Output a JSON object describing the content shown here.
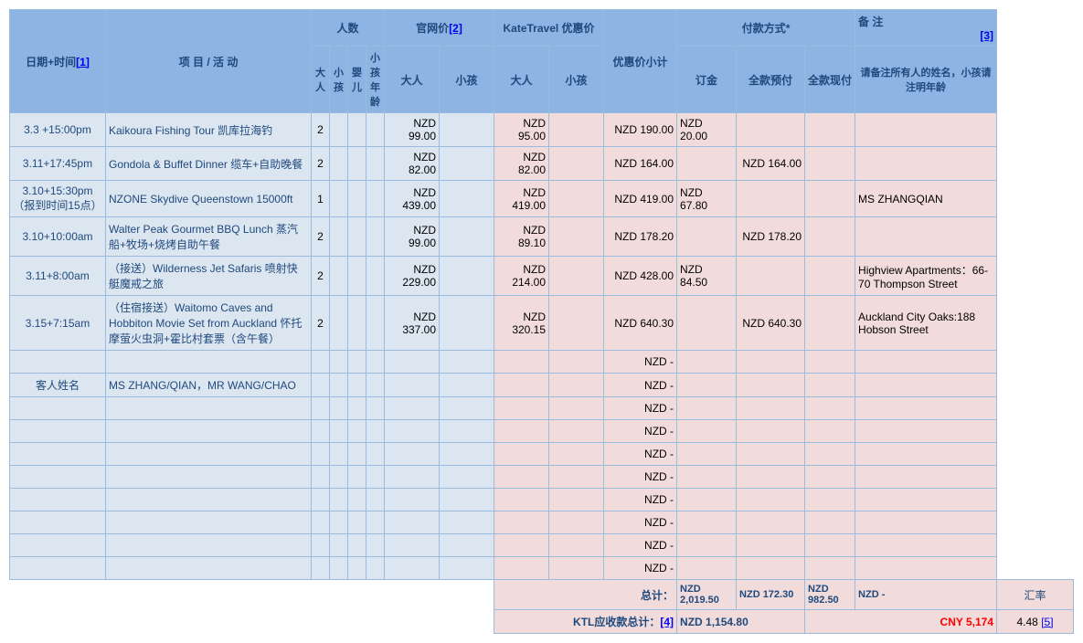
{
  "headers": {
    "date": "日期+时间",
    "date_ref": "[1]",
    "activity": "项 目 / 活 动",
    "people": "人数",
    "official_price": "官网价",
    "official_price_ref": "[2]",
    "kate_price": "KateTravel 优惠价",
    "subtotal": "优惠价小计",
    "payment": "付款方式*",
    "notes": "备   注",
    "notes_ref": "[3]",
    "adult": "大人",
    "child": "小孩",
    "infant": "婴儿",
    "child_age": "小孩年龄",
    "deposit": "订金",
    "full_prepay": "全款预付",
    "full_cash": "全款现付",
    "notes2": "请备注所有人的姓名，小孩请注明年龄"
  },
  "rows": [
    {
      "date": "3.3 +15:00pm",
      "act": "Kaikoura Fishing Tour 凯库拉海钓",
      "pa": "2",
      "pc": "",
      "pi": "",
      "page": "",
      "opa": "NZD 99.00",
      "opc": "",
      "kta": "NZD 95.00",
      "ktc": "",
      "sub": "NZD 190.00",
      "dep": "NZD 20.00",
      "full": "",
      "cash": "",
      "notes": ""
    },
    {
      "date": "3.11+17:45pm",
      "act": "Gondola & Buffet Dinner 缆车+自助晚餐",
      "pa": "2",
      "pc": "",
      "pi": "",
      "page": "",
      "opa": "NZD 82.00",
      "opc": "",
      "kta": "NZD 82.00",
      "ktc": "",
      "sub": "NZD 164.00",
      "dep": "",
      "full": "NZD 164.00",
      "cash": "",
      "notes": ""
    },
    {
      "date": "3.10+15:30pm（报到时间15点）",
      "act": "NZONE Skydive Queenstown 15000ft",
      "pa": "1",
      "pc": "",
      "pi": "",
      "page": "",
      "opa": "NZD 439.00",
      "opc": "",
      "kta": "NZD 419.00",
      "ktc": "",
      "sub": "NZD 419.00",
      "dep": "NZD 67.80",
      "full": "",
      "cash": "",
      "notes": "MS ZHANGQIAN"
    },
    {
      "date": "3.10+10:00am",
      "act": "Walter Peak Gourmet BBQ Lunch 蒸汽船+牧场+烧烤自助午餐",
      "pa": "2",
      "pc": "",
      "pi": "",
      "page": "",
      "opa": "NZD 99.00",
      "opc": "",
      "kta": "NZD 89.10",
      "ktc": "",
      "sub": "NZD 178.20",
      "dep": "",
      "full": "NZD 178.20",
      "cash": "",
      "notes": ""
    },
    {
      "date": "3.11+8:00am",
      "act": "（接送）Wilderness Jet Safaris 喷射快艇魔戒之旅",
      "pa": "2",
      "pc": "",
      "pi": "",
      "page": "",
      "opa": "NZD 229.00",
      "opc": "",
      "kta": "NZD 214.00",
      "ktc": "",
      "sub": "NZD 428.00",
      "dep": "NZD 84.50",
      "full": "",
      "cash": "",
      "notes": "Highview Apartments：66-70 Thompson Street"
    },
    {
      "date": "3.15+7:15am",
      "act": "（住宿接送）Waitomo Caves and Hobbiton Movie Set from Auckland 怀托摩萤火虫洞+霍比村套票（含午餐）",
      "pa": "2",
      "pc": "",
      "pi": "",
      "page": "",
      "opa": "NZD 337.00",
      "opc": "",
      "kta": "NZD 320.15",
      "ktc": "",
      "sub": "NZD 640.30",
      "dep": "",
      "full": "NZD 640.30",
      "cash": "",
      "notes": "Auckland City Oaks:188 Hobson Street"
    },
    {
      "date": "",
      "act": "",
      "pa": "",
      "pc": "",
      "pi": "",
      "page": "",
      "opa": "",
      "opc": "",
      "kta": "",
      "ktc": "",
      "sub": "NZD -",
      "dep": "",
      "full": "",
      "cash": "",
      "notes": ""
    },
    {
      "date": "客人姓名",
      "act": "MS ZHANG/QIAN，MR WANG/CHAO",
      "pa": "",
      "pc": "",
      "pi": "",
      "page": "",
      "opa": "",
      "opc": "",
      "kta": "",
      "ktc": "",
      "sub": "NZD -",
      "dep": "",
      "full": "",
      "cash": "",
      "notes": ""
    },
    {
      "date": "",
      "act": "",
      "pa": "",
      "pc": "",
      "pi": "",
      "page": "",
      "opa": "",
      "opc": "",
      "kta": "",
      "ktc": "",
      "sub": "NZD -",
      "dep": "",
      "full": "",
      "cash": "",
      "notes": ""
    },
    {
      "date": "",
      "act": "",
      "pa": "",
      "pc": "",
      "pi": "",
      "page": "",
      "opa": "",
      "opc": "",
      "kta": "",
      "ktc": "",
      "sub": "NZD -",
      "dep": "",
      "full": "",
      "cash": "",
      "notes": ""
    },
    {
      "date": "",
      "act": "",
      "pa": "",
      "pc": "",
      "pi": "",
      "page": "",
      "opa": "",
      "opc": "",
      "kta": "",
      "ktc": "",
      "sub": "NZD -",
      "dep": "",
      "full": "",
      "cash": "",
      "notes": ""
    },
    {
      "date": "",
      "act": "",
      "pa": "",
      "pc": "",
      "pi": "",
      "page": "",
      "opa": "",
      "opc": "",
      "kta": "",
      "ktc": "",
      "sub": "NZD -",
      "dep": "",
      "full": "",
      "cash": "",
      "notes": ""
    },
    {
      "date": "",
      "act": "",
      "pa": "",
      "pc": "",
      "pi": "",
      "page": "",
      "opa": "",
      "opc": "",
      "kta": "",
      "ktc": "",
      "sub": "NZD -",
      "dep": "",
      "full": "",
      "cash": "",
      "notes": ""
    },
    {
      "date": "",
      "act": "",
      "pa": "",
      "pc": "",
      "pi": "",
      "page": "",
      "opa": "",
      "opc": "",
      "kta": "",
      "ktc": "",
      "sub": "NZD -",
      "dep": "",
      "full": "",
      "cash": "",
      "notes": ""
    },
    {
      "date": "",
      "act": "",
      "pa": "",
      "pc": "",
      "pi": "",
      "page": "",
      "opa": "",
      "opc": "",
      "kta": "",
      "ktc": "",
      "sub": "NZD -",
      "dep": "",
      "full": "",
      "cash": "",
      "notes": ""
    },
    {
      "date": "",
      "act": "",
      "pa": "",
      "pc": "",
      "pi": "",
      "page": "",
      "opa": "",
      "opc": "",
      "kta": "",
      "ktc": "",
      "sub": "NZD -",
      "dep": "",
      "full": "",
      "cash": "",
      "notes": ""
    }
  ],
  "summary": {
    "total_label": "总计：",
    "total_sub": "NZD 2,019.50",
    "total_dep": "NZD 172.30",
    "total_full": "NZD 982.50",
    "total_cash": "NZD -",
    "rate_label": "汇率",
    "receivable_label": "KTL应收款总计：",
    "receivable_ref": "[4]",
    "receivable_nzd": "NZD 1,154.80",
    "receivable_cny": "CNY 5,174",
    "rate_value": "4.48",
    "rate_ref": "[5]"
  }
}
